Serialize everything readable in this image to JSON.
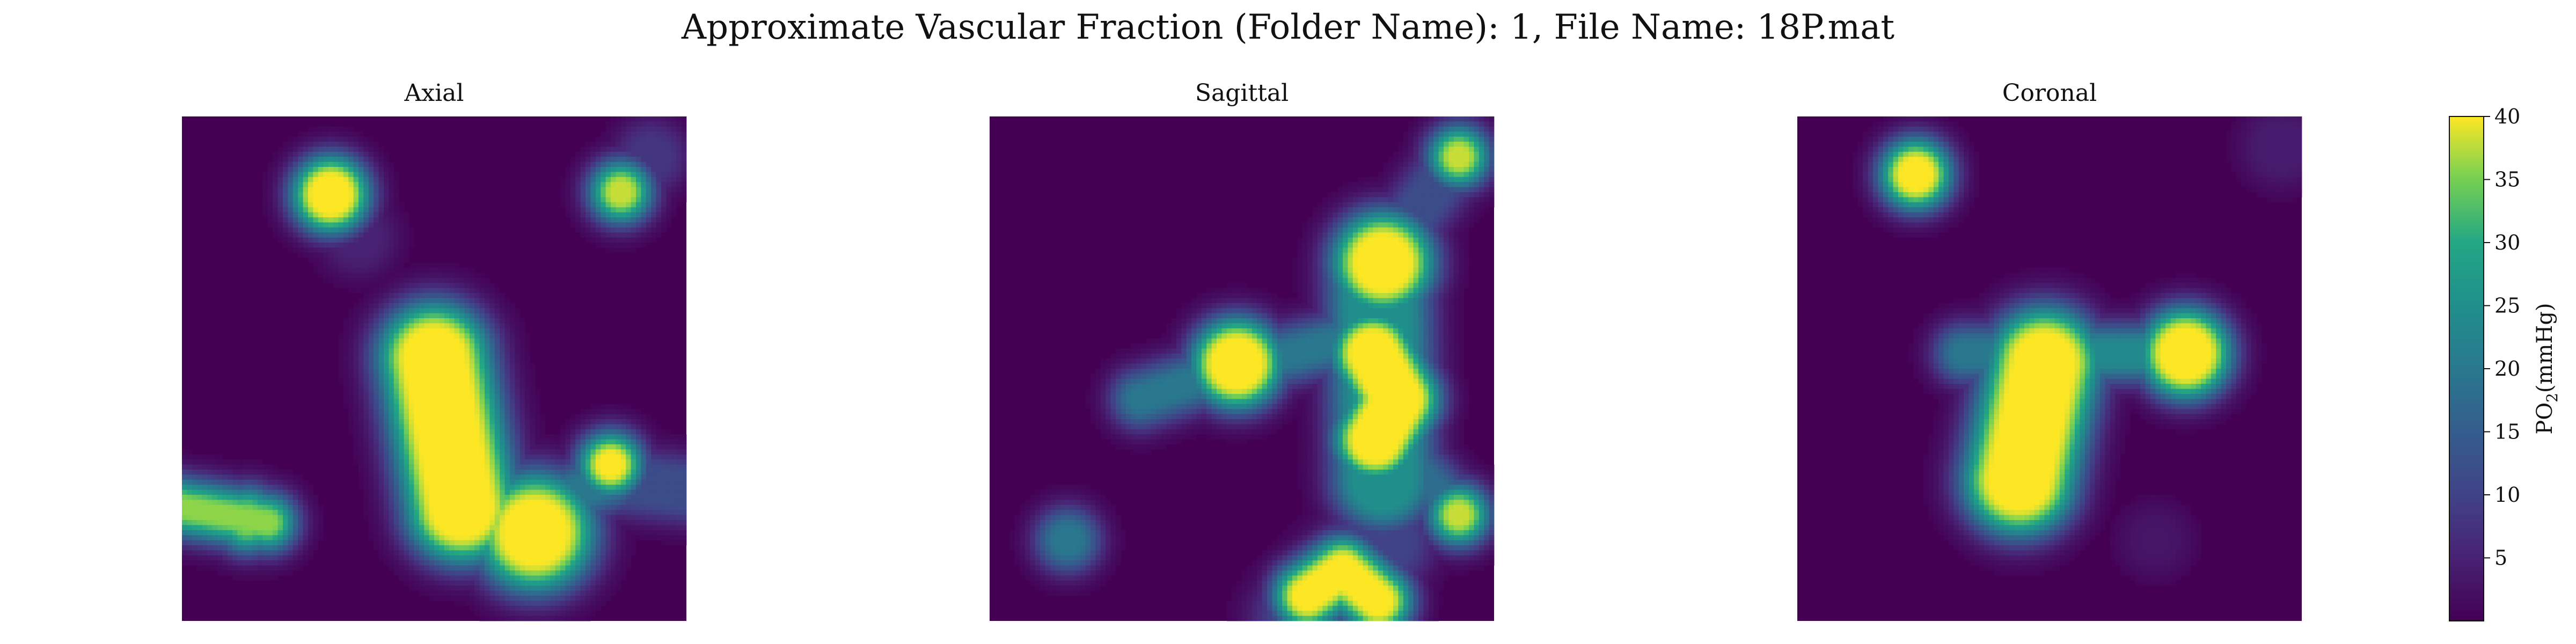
{
  "chart_data": {
    "type": "heatmap",
    "title": "Approximate Vascular Fraction (Folder Name): 1, File Name: 18P.mat",
    "panels": [
      {
        "title": "Axial",
        "colormap": "viridis",
        "background_value": 0,
        "axes": "off",
        "features": [
          {
            "kind": "blob",
            "x": 0.295,
            "y": 0.155,
            "radius": 0.035,
            "value": 40
          },
          {
            "kind": "blob",
            "x": 0.87,
            "y": 0.15,
            "radius": 0.017,
            "value": 38
          },
          {
            "kind": "blob",
            "x": 0.93,
            "y": 0.08,
            "radius": 0.03,
            "value": 8
          },
          {
            "kind": "segment",
            "x1": 0.5,
            "y1": 0.48,
            "x2": 0.555,
            "y2": 0.775,
            "radius": 0.055,
            "value": 40
          },
          {
            "kind": "blob",
            "x": 0.495,
            "y": 0.475,
            "radius": 0.04,
            "value": 35
          },
          {
            "kind": "segment",
            "x1": 0.56,
            "y1": 0.76,
            "x2": 0.69,
            "y2": 0.795,
            "radius": 0.035,
            "value": 27
          },
          {
            "kind": "blob",
            "x": 0.7,
            "y": 0.825,
            "radius": 0.058,
            "value": 40
          },
          {
            "kind": "segment",
            "x1": 0.72,
            "y1": 0.77,
            "x2": 0.85,
            "y2": 0.72,
            "radius": 0.018,
            "value": 20
          },
          {
            "kind": "blob",
            "x": 0.85,
            "y": 0.69,
            "radius": 0.02,
            "value": 40
          },
          {
            "kind": "segment",
            "x1": 0.84,
            "y1": 0.72,
            "x2": 1.0,
            "y2": 0.74,
            "radius": 0.025,
            "value": 12
          },
          {
            "kind": "segment",
            "x1": 0.0,
            "y1": 0.775,
            "x2": 0.17,
            "y2": 0.805,
            "radius": 0.012,
            "value": 36
          },
          {
            "kind": "blob",
            "x": 0.13,
            "y": 0.8,
            "radius": 0.02,
            "value": 35
          },
          {
            "kind": "blob",
            "x": 0.35,
            "y": 0.24,
            "radius": 0.035,
            "value": 5
          }
        ]
      },
      {
        "title": "Sagittal",
        "colormap": "viridis",
        "background_value": 0,
        "axes": "off",
        "features": [
          {
            "kind": "blob",
            "x": 0.78,
            "y": 0.29,
            "radius": 0.05,
            "value": 40
          },
          {
            "kind": "segment",
            "x1": 0.77,
            "y1": 0.3,
            "x2": 0.78,
            "y2": 0.72,
            "radius": 0.05,
            "value": 25
          },
          {
            "kind": "segment",
            "x1": 0.76,
            "y1": 0.47,
            "x2": 0.81,
            "y2": 0.56,
            "radius": 0.04,
            "value": 40
          },
          {
            "kind": "segment",
            "x1": 0.81,
            "y1": 0.56,
            "x2": 0.765,
            "y2": 0.64,
            "radius": 0.04,
            "value": 40
          },
          {
            "kind": "blob",
            "x": 0.49,
            "y": 0.49,
            "radius": 0.045,
            "value": 40
          },
          {
            "kind": "segment",
            "x1": 0.3,
            "y1": 0.56,
            "x2": 0.48,
            "y2": 0.5,
            "radius": 0.014,
            "value": 20
          },
          {
            "kind": "segment",
            "x1": 0.52,
            "y1": 0.49,
            "x2": 0.72,
            "y2": 0.44,
            "radius": 0.014,
            "value": 20
          },
          {
            "kind": "blob",
            "x": 0.93,
            "y": 0.08,
            "radius": 0.016,
            "value": 38
          },
          {
            "kind": "segment",
            "x1": 0.93,
            "y1": 0.08,
            "x2": 0.8,
            "y2": 0.25,
            "radius": 0.022,
            "value": 12
          },
          {
            "kind": "segment",
            "x1": 0.8,
            "y1": 0.65,
            "x2": 0.93,
            "y2": 0.79,
            "radius": 0.014,
            "value": 18
          },
          {
            "kind": "blob",
            "x": 0.93,
            "y": 0.79,
            "radius": 0.016,
            "value": 38
          },
          {
            "kind": "blob",
            "x": 0.155,
            "y": 0.84,
            "radius": 0.02,
            "value": 20
          },
          {
            "kind": "segment",
            "x1": 0.63,
            "y1": 0.95,
            "x2": 0.7,
            "y2": 0.9,
            "radius": 0.024,
            "value": 40
          },
          {
            "kind": "segment",
            "x1": 0.7,
            "y1": 0.9,
            "x2": 0.77,
            "y2": 0.96,
            "radius": 0.024,
            "value": 40
          },
          {
            "kind": "segment",
            "x1": 0.62,
            "y1": 1.0,
            "x2": 0.78,
            "y2": 0.84,
            "radius": 0.05,
            "value": 10
          },
          {
            "kind": "segment",
            "x1": 0.7,
            "y1": 0.9,
            "x2": 0.74,
            "y2": 0.72,
            "radius": 0.012,
            "value": 8
          }
        ]
      },
      {
        "title": "Coronal",
        "colormap": "viridis",
        "background_value": 0,
        "axes": "off",
        "features": [
          {
            "kind": "blob",
            "x": 0.235,
            "y": 0.115,
            "radius": 0.028,
            "value": 40
          },
          {
            "kind": "blob",
            "x": 0.77,
            "y": 0.47,
            "radius": 0.045,
            "value": 40
          },
          {
            "kind": "segment",
            "x1": 0.45,
            "y1": 0.47,
            "x2": 0.73,
            "y2": 0.47,
            "radius": 0.014,
            "value": 24
          },
          {
            "kind": "segment",
            "x1": 0.33,
            "y1": 0.47,
            "x2": 0.47,
            "y2": 0.47,
            "radius": 0.014,
            "value": 20
          },
          {
            "kind": "segment",
            "x1": 0.49,
            "y1": 0.49,
            "x2": 0.44,
            "y2": 0.72,
            "radius": 0.055,
            "value": 40
          },
          {
            "kind": "blob",
            "x": 0.43,
            "y": 0.72,
            "radius": 0.04,
            "value": 38
          },
          {
            "kind": "blob",
            "x": 0.96,
            "y": 0.06,
            "radius": 0.04,
            "value": 4
          },
          {
            "kind": "blob",
            "x": 0.71,
            "y": 0.84,
            "radius": 0.03,
            "value": 3
          }
        ]
      }
    ],
    "colorbar": {
      "label_prefix": "PO",
      "label_sub": "2",
      "label_suffix": "(mmHg)",
      "range": [
        0,
        40
      ],
      "ticks": [
        5,
        10,
        15,
        20,
        25,
        30,
        35,
        40
      ],
      "colormap": "viridis"
    }
  }
}
